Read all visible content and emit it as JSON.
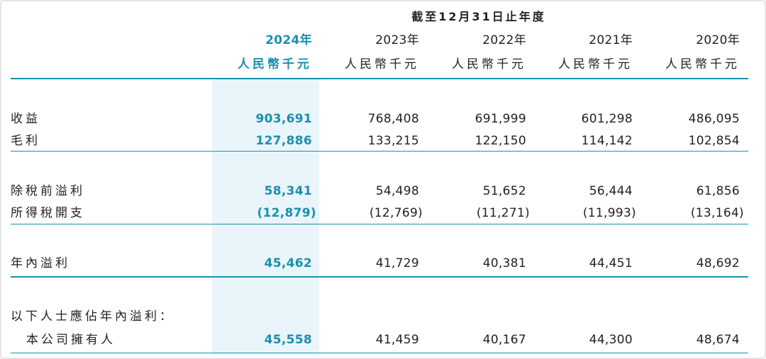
{
  "header": {
    "period": "截至12月31日止年度",
    "years": [
      "2024年",
      "2023年",
      "2022年",
      "2021年",
      "2020年"
    ],
    "unit": "人民幣千元"
  },
  "rows": {
    "revenue": {
      "label": "收益",
      "values": [
        "903,691",
        "768,408",
        "691,999",
        "601,298",
        "486,095"
      ]
    },
    "gross_profit": {
      "label": "毛利",
      "values": [
        "127,886",
        "133,215",
        "122,150",
        "114,142",
        "102,854"
      ]
    },
    "profit_before_tax": {
      "label": "除稅前溢利",
      "values": [
        "58,341",
        "54,498",
        "51,652",
        "56,444",
        "61,856"
      ]
    },
    "income_tax": {
      "label": "所得稅開支",
      "values": [
        "(12,879)",
        "(12,769)",
        "(11,271)",
        "(11,993)",
        "(13,164)"
      ]
    },
    "profit_for_year": {
      "label": "年內溢利",
      "values": [
        "45,462",
        "41,729",
        "40,381",
        "44,451",
        "48,692"
      ]
    },
    "attributable_heading": {
      "label": "以下人士應佔年內溢利："
    },
    "owners": {
      "label": "本公司擁有人",
      "values": [
        "45,558",
        "41,459",
        "40,167",
        "44,300",
        "48,674"
      ]
    }
  },
  "colors": {
    "accent": "#1a8fb0",
    "highlight": "#eaf5fb",
    "text": "#231f20"
  }
}
